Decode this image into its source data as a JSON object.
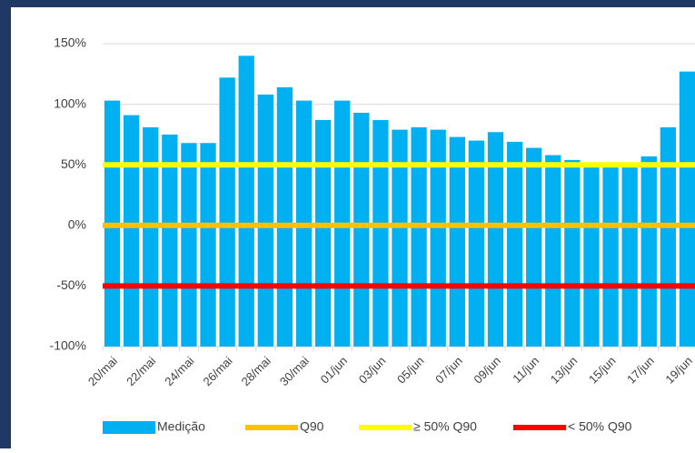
{
  "chart_data": {
    "type": "bar",
    "categories": [
      "20/mai",
      null,
      "22/mai",
      null,
      "24/mai",
      null,
      "26/mai",
      null,
      "28/mai",
      null,
      "30/mai",
      null,
      "01/jun",
      null,
      "03/jun",
      null,
      "05/jun",
      null,
      "07/jun",
      null,
      "09/jun",
      null,
      "11/jun",
      null,
      "13/jun",
      null,
      "15/jun",
      null,
      "17/jun",
      null,
      "19/jun"
    ],
    "series": [
      {
        "name": "Medição",
        "type": "bar",
        "color": "#00b0f0",
        "values": [
          103,
          91,
          81,
          75,
          68,
          68,
          122,
          140,
          108,
          114,
          103,
          87,
          103,
          93,
          87,
          79,
          81,
          79,
          73,
          70,
          77,
          69,
          64,
          58,
          54,
          48,
          48,
          48,
          57,
          81,
          127
        ]
      },
      {
        "name": "Q90",
        "type": "line",
        "color": "#ffc000",
        "values": [
          0,
          0,
          0,
          0,
          0,
          0,
          0,
          0,
          0,
          0,
          0,
          0,
          0,
          0,
          0,
          0,
          0,
          0,
          0,
          0,
          0,
          0,
          0,
          0,
          0,
          0,
          0,
          0,
          0,
          0,
          0
        ]
      },
      {
        "name": "≥ 50% Q90",
        "type": "line",
        "color": "#ffff00",
        "values": [
          50,
          50,
          50,
          50,
          50,
          50,
          50,
          50,
          50,
          50,
          50,
          50,
          50,
          50,
          50,
          50,
          50,
          50,
          50,
          50,
          50,
          50,
          50,
          50,
          50,
          50,
          50,
          50,
          50,
          50,
          50
        ]
      },
      {
        "name": "< 50% Q90",
        "type": "line",
        "color": "#ff0000",
        "values": [
          -50,
          -50,
          -50,
          -50,
          -50,
          -50,
          -50,
          -50,
          -50,
          -50,
          -50,
          -50,
          -50,
          -50,
          -50,
          -50,
          -50,
          -50,
          -50,
          -50,
          -50,
          -50,
          -50,
          -50,
          -50,
          -50,
          -50,
          -50,
          -50,
          -50,
          -50
        ]
      }
    ],
    "ylim": [
      -100,
      150
    ],
    "yticks": [
      {
        "value": -100,
        "label": "-100%"
      },
      {
        "value": -50,
        "label": "-50%"
      },
      {
        "value": 0,
        "label": "0%"
      },
      {
        "value": 50,
        "label": "50%"
      },
      {
        "value": 100,
        "label": "100%"
      },
      {
        "value": 150,
        "label": "150%"
      }
    ],
    "grid": true,
    "legend": "bottom"
  }
}
